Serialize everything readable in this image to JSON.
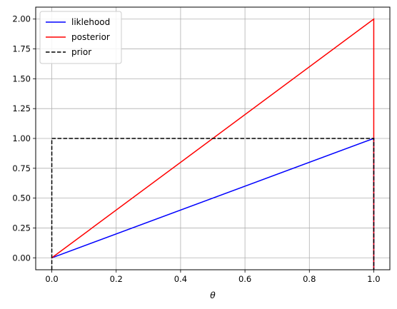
{
  "chart_data": {
    "type": "line",
    "title": "",
    "xlabel": "θ",
    "ylabel": "",
    "xlim": [
      -0.05,
      1.05
    ],
    "ylim": [
      -0.1,
      2.1
    ],
    "grid": true,
    "legend_position": "upper-left",
    "x_ticks": [
      "0.0",
      "0.2",
      "0.4",
      "0.6",
      "0.8",
      "1.0"
    ],
    "x_tick_values": [
      0,
      0.2,
      0.4,
      0.6,
      0.8,
      1.0
    ],
    "y_ticks": [
      "0.00",
      "0.25",
      "0.50",
      "0.75",
      "1.00",
      "1.25",
      "1.50",
      "1.75",
      "2.00"
    ],
    "y_tick_values": [
      0,
      0.25,
      0.5,
      0.75,
      1.0,
      1.25,
      1.5,
      1.75,
      2.0
    ],
    "series": [
      {
        "name": "liklehood",
        "color": "#0000ff",
        "style": "solid",
        "x": [
          0,
          1,
          1
        ],
        "y": [
          0,
          1,
          -0.1
        ]
      },
      {
        "name": "posterior",
        "color": "#ff0000",
        "style": "solid",
        "x": [
          0,
          1,
          1
        ],
        "y": [
          0,
          2,
          -0.1
        ]
      },
      {
        "name": "prior",
        "color": "#000000",
        "style": "dashed",
        "x": [
          0,
          0,
          1,
          1
        ],
        "y": [
          -0.1,
          1,
          1,
          -0.1
        ]
      }
    ]
  }
}
